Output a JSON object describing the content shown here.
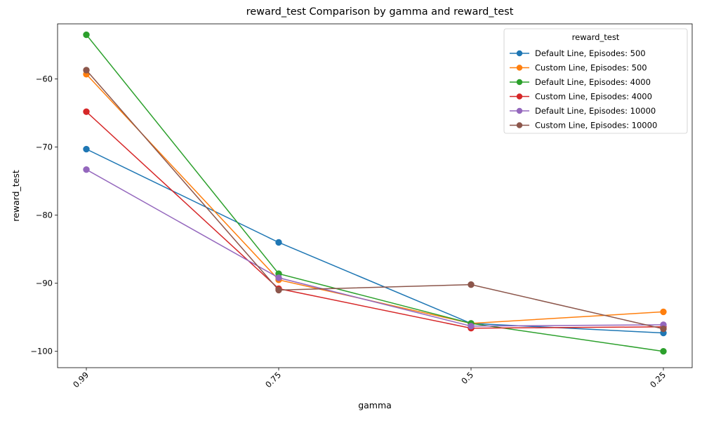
{
  "chart_data": {
    "type": "line",
    "title": "reward_test Comparison by gamma and reward_test",
    "xlabel": "gamma",
    "ylabel": "reward_test",
    "categories": [
      "0.99",
      "0.75",
      "0.5",
      "0.25"
    ],
    "x_tick_rotation_deg": 45,
    "ylim": [
      -102.4,
      -51.9
    ],
    "yticks": [
      -100,
      -90,
      -80,
      -70,
      -60
    ],
    "yticks_labels": [
      "−100",
      "−90",
      "−80",
      "−70",
      "−60"
    ],
    "grid": false,
    "legend": {
      "title": "reward_test",
      "placement": "top-right"
    },
    "markers": "circle",
    "series": [
      {
        "name": "Default Line, Episodes: 500",
        "color": "#1f77b4",
        "values": [
          -70.3,
          -84.0,
          -95.9,
          -97.3
        ]
      },
      {
        "name": "Custom Line, Episodes: 500",
        "color": "#ff7f0e",
        "values": [
          -59.3,
          -89.5,
          -95.9,
          -94.2
        ]
      },
      {
        "name": "Default Line, Episodes: 4000",
        "color": "#2ca02c",
        "values": [
          -53.5,
          -88.6,
          -95.9,
          -100.0
        ]
      },
      {
        "name": "Custom Line, Episodes: 4000",
        "color": "#d62728",
        "values": [
          -64.8,
          -90.8,
          -96.6,
          -96.4
        ]
      },
      {
        "name": "Default Line, Episodes: 10000",
        "color": "#9467bd",
        "values": [
          -73.3,
          -89.2,
          -96.3,
          -96.1
        ]
      },
      {
        "name": "Custom Line, Episodes: 10000",
        "color": "#8c564b",
        "values": [
          -58.7,
          -91.0,
          -90.2,
          -96.7
        ]
      }
    ]
  }
}
